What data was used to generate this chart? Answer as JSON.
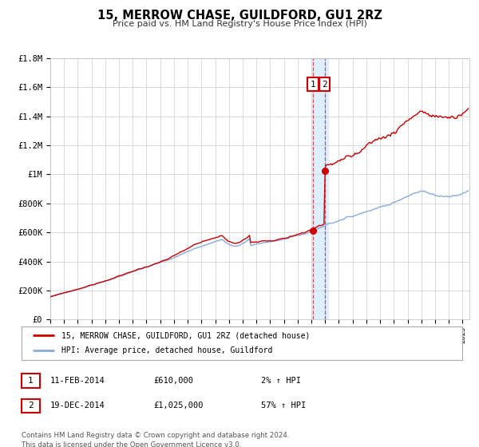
{
  "title": "15, MERROW CHASE, GUILDFORD, GU1 2RZ",
  "subtitle": "Price paid vs. HM Land Registry's House Price Index (HPI)",
  "hpi_color": "#88aadd",
  "price_color": "#cc0000",
  "highlight_color": "#ddeeff",
  "bg_color": "#ffffff",
  "grid_color": "#cccccc",
  "ylim": [
    0,
    1800000
  ],
  "yticks": [
    0,
    200000,
    400000,
    600000,
    800000,
    1000000,
    1200000,
    1400000,
    1600000,
    1800000
  ],
  "ytick_labels": [
    "£0",
    "£200K",
    "£400K",
    "£600K",
    "£800K",
    "£1M",
    "£1.2M",
    "£1.4M",
    "£1.6M",
    "£1.8M"
  ],
  "xmin": 1995.0,
  "xmax": 2025.5,
  "transaction1_x": 2014.12,
  "transaction1_y": 610000,
  "transaction2_x": 2014.97,
  "transaction2_y": 1025000,
  "highlight_x1": 2014.05,
  "highlight_x2": 2015.2,
  "legend_label_price": "15, MERROW CHASE, GUILDFORD, GU1 2RZ (detached house)",
  "legend_label_hpi": "HPI: Average price, detached house, Guildford",
  "table_rows": [
    {
      "num": "1",
      "date": "11-FEB-2014",
      "price": "£610,000",
      "pct": "2% ↑ HPI"
    },
    {
      "num": "2",
      "date": "19-DEC-2014",
      "price": "£1,025,000",
      "pct": "57% ↑ HPI"
    }
  ],
  "footer": "Contains HM Land Registry data © Crown copyright and database right 2024.\nThis data is licensed under the Open Government Licence v3.0."
}
